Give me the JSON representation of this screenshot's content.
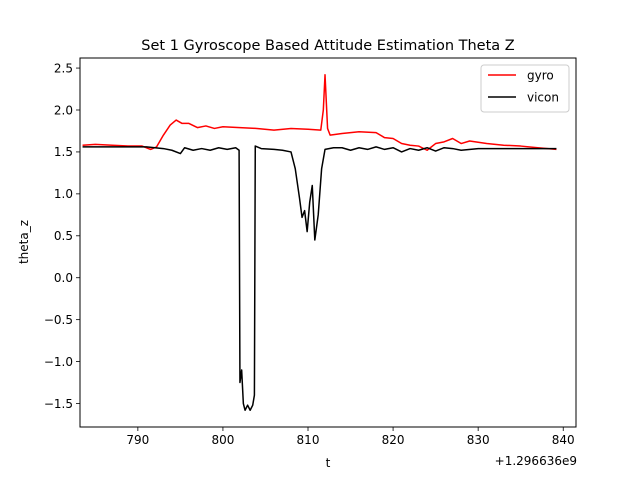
{
  "chart_data": {
    "type": "line",
    "title": "Set 1 Gyroscope Based Attitude Estimation Theta Z",
    "xlabel": "t",
    "ylabel": "theta_z",
    "x_offset_label": "+1.296636e9",
    "xlim": [
      1296636783.2,
      1296636841.5
    ],
    "ylim": [
      -1.78,
      2.62
    ],
    "x_ticks": [
      790,
      800,
      810,
      820,
      830,
      840
    ],
    "x_tick_labels": [
      "790",
      "800",
      "810",
      "820",
      "830",
      "840"
    ],
    "y_ticks": [
      -1.5,
      -1.0,
      -0.5,
      0.0,
      0.5,
      1.0,
      1.5,
      2.0,
      2.5
    ],
    "y_tick_labels": [
      "−1.5",
      "−1.0",
      "−0.5",
      "0.0",
      "0.5",
      "1.0",
      "1.5",
      "2.0",
      "2.5"
    ],
    "grid": false,
    "legend_position": "top-right",
    "series": [
      {
        "name": "gyro",
        "color": "#ff0000",
        "points": [
          [
            1296636783.5,
            1.58
          ],
          [
            1296636785,
            1.59
          ],
          [
            1296636787,
            1.58
          ],
          [
            1296636789,
            1.57
          ],
          [
            1296636790.5,
            1.57
          ],
          [
            1296636791.5,
            1.53
          ],
          [
            1296636792.2,
            1.56
          ],
          [
            1296636793,
            1.7
          ],
          [
            1296636793.8,
            1.82
          ],
          [
            1296636794.5,
            1.88
          ],
          [
            1296636795.2,
            1.84
          ],
          [
            1296636796,
            1.84
          ],
          [
            1296636797,
            1.79
          ],
          [
            1296636798,
            1.81
          ],
          [
            1296636799,
            1.78
          ],
          [
            1296636800,
            1.8
          ],
          [
            1296636802,
            1.79
          ],
          [
            1296636804,
            1.78
          ],
          [
            1296636806,
            1.76
          ],
          [
            1296636808,
            1.78
          ],
          [
            1296636810,
            1.77
          ],
          [
            1296636811.5,
            1.76
          ],
          [
            1296636811.8,
            2.0
          ],
          [
            1296636812,
            2.42
          ],
          [
            1296636812.3,
            1.78
          ],
          [
            1296636812.6,
            1.7
          ],
          [
            1296636814,
            1.72
          ],
          [
            1296636816,
            1.74
          ],
          [
            1296636818,
            1.73
          ],
          [
            1296636819,
            1.67
          ],
          [
            1296636820,
            1.66
          ],
          [
            1296636821,
            1.6
          ],
          [
            1296636822,
            1.58
          ],
          [
            1296636823,
            1.57
          ],
          [
            1296636824,
            1.52
          ],
          [
            1296636825,
            1.6
          ],
          [
            1296636826,
            1.62
          ],
          [
            1296636827,
            1.66
          ],
          [
            1296636828,
            1.6
          ],
          [
            1296636829,
            1.63
          ],
          [
            1296636831,
            1.6
          ],
          [
            1296636833,
            1.58
          ],
          [
            1296636835,
            1.57
          ],
          [
            1296636837,
            1.55
          ],
          [
            1296636839.2,
            1.53
          ]
        ]
      },
      {
        "name": "vicon",
        "color": "#000000",
        "points": [
          [
            1296636783.5,
            1.56
          ],
          [
            1296636786,
            1.56
          ],
          [
            1296636789,
            1.56
          ],
          [
            1296636791,
            1.56
          ],
          [
            1296636792,
            1.55
          ],
          [
            1296636793,
            1.54
          ],
          [
            1296636794,
            1.52
          ],
          [
            1296636795,
            1.48
          ],
          [
            1296636795.5,
            1.55
          ],
          [
            1296636796.5,
            1.52
          ],
          [
            1296636797.5,
            1.54
          ],
          [
            1296636798.5,
            1.52
          ],
          [
            1296636799.5,
            1.55
          ],
          [
            1296636800.5,
            1.53
          ],
          [
            1296636801.5,
            1.55
          ],
          [
            1296636801.9,
            1.52
          ],
          [
            1296636802,
            -1.25
          ],
          [
            1296636802.2,
            -1.1
          ],
          [
            1296636802.4,
            -1.5
          ],
          [
            1296636802.6,
            -1.58
          ],
          [
            1296636802.9,
            -1.52
          ],
          [
            1296636803.2,
            -1.58
          ],
          [
            1296636803.5,
            -1.52
          ],
          [
            1296636803.7,
            -1.4
          ],
          [
            1296636803.8,
            1.57
          ],
          [
            1296636804.5,
            1.54
          ],
          [
            1296636806,
            1.53
          ],
          [
            1296636807,
            1.52
          ],
          [
            1296636808,
            1.5
          ],
          [
            1296636808.5,
            1.3
          ],
          [
            1296636809,
            0.95
          ],
          [
            1296636809.3,
            0.72
          ],
          [
            1296636809.6,
            0.8
          ],
          [
            1296636809.9,
            0.55
          ],
          [
            1296636810.2,
            0.9
          ],
          [
            1296636810.5,
            1.1
          ],
          [
            1296636810.8,
            0.45
          ],
          [
            1296636811.2,
            0.75
          ],
          [
            1296636811.6,
            1.3
          ],
          [
            1296636812,
            1.53
          ],
          [
            1296636813,
            1.55
          ],
          [
            1296636814,
            1.55
          ],
          [
            1296636815,
            1.52
          ],
          [
            1296636816,
            1.55
          ],
          [
            1296636817,
            1.53
          ],
          [
            1296636818,
            1.56
          ],
          [
            1296636819,
            1.53
          ],
          [
            1296636820,
            1.55
          ],
          [
            1296636821,
            1.5
          ],
          [
            1296636822,
            1.54
          ],
          [
            1296636823,
            1.52
          ],
          [
            1296636824,
            1.55
          ],
          [
            1296636825,
            1.51
          ],
          [
            1296636826,
            1.55
          ],
          [
            1296636827,
            1.54
          ],
          [
            1296636828,
            1.52
          ],
          [
            1296636830,
            1.54
          ],
          [
            1296636833,
            1.54
          ],
          [
            1296636836,
            1.54
          ],
          [
            1296636839.2,
            1.54
          ]
        ]
      }
    ]
  }
}
